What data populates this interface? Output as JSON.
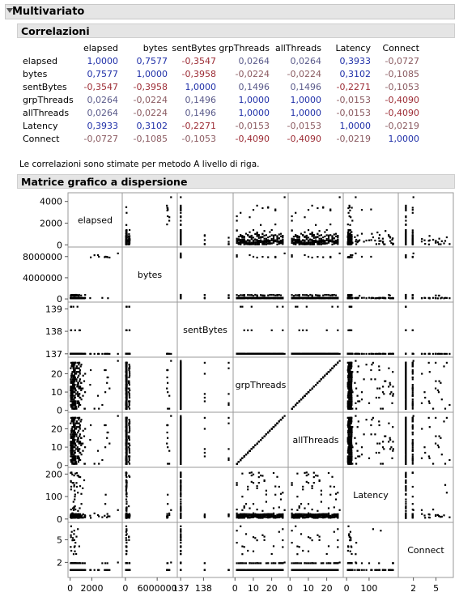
{
  "header": {
    "title": "Multivariato"
  },
  "correlations": {
    "title": "Correlazioni",
    "columns": [
      "elapsed",
      "bytes",
      "sentBytes",
      "grpThreads",
      "allThreads",
      "Latency",
      "Connect"
    ],
    "rows": [
      {
        "name": "elapsed",
        "values": [
          "1,0000",
          "0,7577",
          "-0,3547",
          "0,0264",
          "0,0264",
          "0,3933",
          "-0,0727"
        ]
      },
      {
        "name": "bytes",
        "values": [
          "0,7577",
          "1,0000",
          "-0,3958",
          "-0,0224",
          "-0,0224",
          "0,3102",
          "-0,1085"
        ]
      },
      {
        "name": "sentBytes",
        "values": [
          "-0,3547",
          "-0,3958",
          "1,0000",
          "0,1496",
          "0,1496",
          "-0,2271",
          "-0,1053"
        ]
      },
      {
        "name": "grpThreads",
        "values": [
          "0,0264",
          "-0,0224",
          "0,1496",
          "1,0000",
          "1,0000",
          "-0,0153",
          "-0,4090"
        ]
      },
      {
        "name": "allThreads",
        "values": [
          "0,0264",
          "-0,0224",
          "0,1496",
          "1,0000",
          "1,0000",
          "-0,0153",
          "-0,4090"
        ]
      },
      {
        "name": "Latency",
        "values": [
          "0,3933",
          "0,3102",
          "-0,2271",
          "-0,0153",
          "-0,0153",
          "1,0000",
          "-0,0219"
        ]
      },
      {
        "name": "Connect",
        "values": [
          "-0,0727",
          "-0,1085",
          "-0,1053",
          "-0,4090",
          "-0,4090",
          "-0,0219",
          "1,0000"
        ]
      }
    ],
    "note": "Le correlazioni sono stimate per metodo A livello di riga.",
    "colors": {
      "positive": "#1f2fa8",
      "negative": "#9c2b34",
      "positive_faint": "#5a5a8a",
      "negative_faint": "#8a5a60"
    }
  },
  "chart_data": {
    "type": "scatter",
    "title": "Matrice grafico a dispersione",
    "variables": [
      "elapsed",
      "bytes",
      "sentBytes",
      "grpThreads",
      "allThreads",
      "Latency",
      "Connect"
    ],
    "y_ticks": [
      [
        "4000",
        "2000",
        "0"
      ],
      [
        "8000000",
        "4000000",
        "0"
      ],
      [
        "139",
        "138",
        "137"
      ],
      [
        "20",
        "10",
        "0"
      ],
      [
        "20",
        "10",
        "0"
      ],
      [
        "200",
        "100",
        "0"
      ],
      [
        "5",
        "2"
      ]
    ],
    "x_ticks": [
      [
        "0",
        "2000"
      ],
      [
        "0",
        "6000000"
      ],
      [
        "137",
        "138"
      ],
      [
        "0",
        "10",
        "20"
      ],
      [
        "0",
        "10",
        "20"
      ],
      [
        "0",
        "100"
      ],
      [
        "2",
        "5"
      ]
    ],
    "ranges": {
      "elapsed": [
        -200,
        4800
      ],
      "bytes": [
        -600000,
        9800000
      ],
      "sentBytes": [
        136.85,
        139.3
      ],
      "grpThreads": [
        -1,
        29
      ],
      "allThreads": [
        -1,
        29
      ],
      "Latency": [
        -15,
        230
      ],
      "Connect": [
        0,
        7.3
      ]
    }
  }
}
